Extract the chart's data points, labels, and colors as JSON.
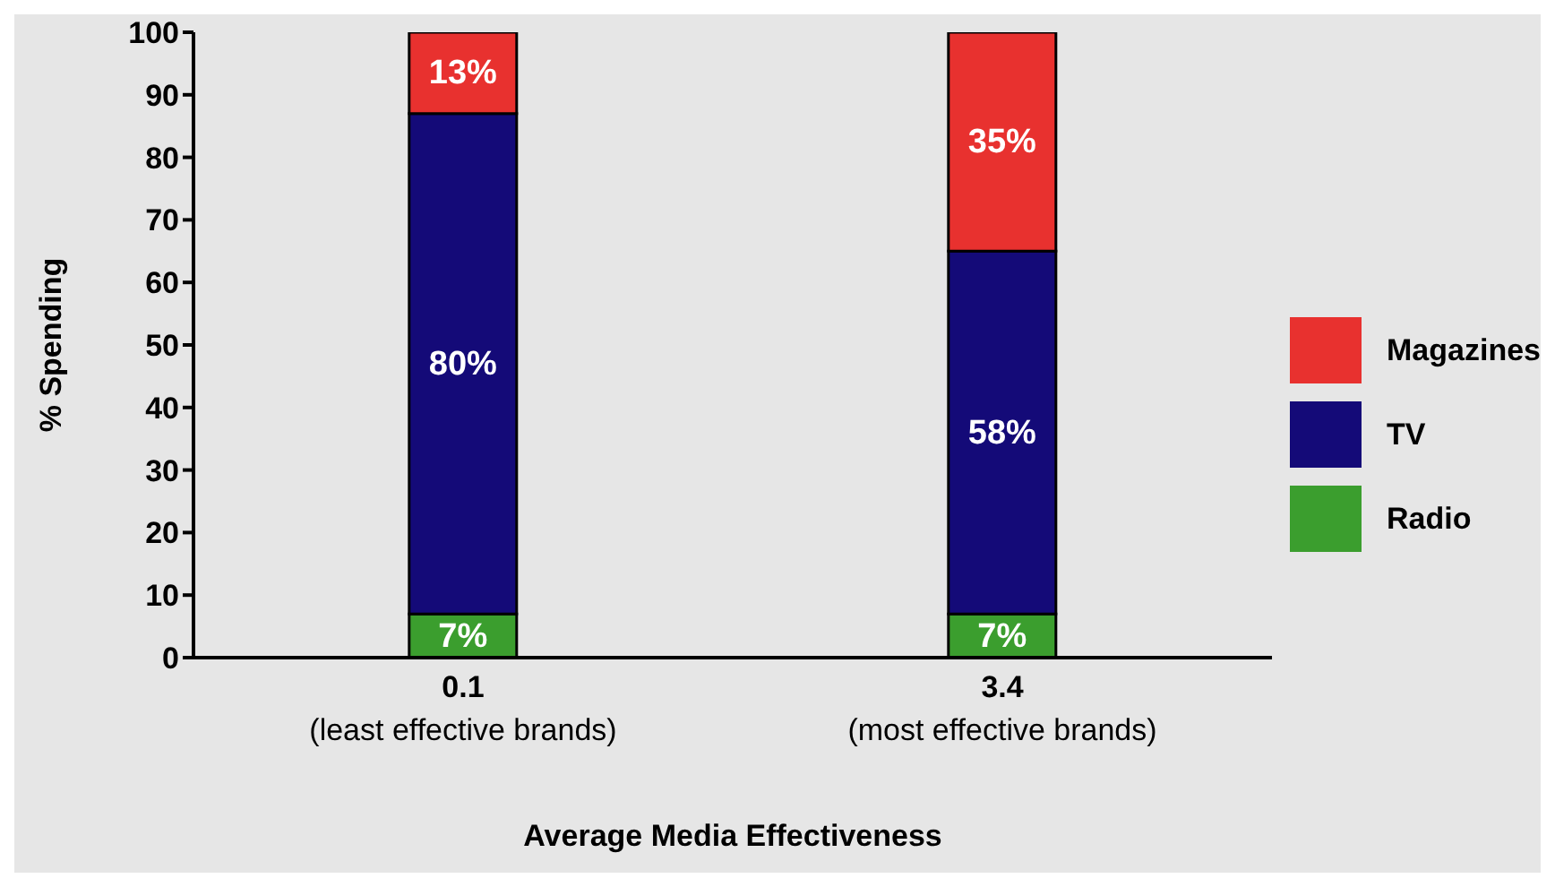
{
  "chart_data": {
    "type": "bar",
    "stacked": true,
    "xlabel": "Average Media Effectiveness",
    "ylabel": "% Spending",
    "categories": [
      "0.1\n(least effective brands)",
      "3.4\n(most effective brands)"
    ],
    "series": [
      {
        "name": "Radio",
        "color": "#3b9e2e",
        "values": [
          7,
          7
        ],
        "value_labels": [
          "7%",
          "7%"
        ]
      },
      {
        "name": "TV",
        "color": "#140a78",
        "values": [
          80,
          58
        ],
        "value_labels": [
          "80%",
          "58%"
        ]
      },
      {
        "name": "Magazines",
        "color": "#e8312f",
        "values": [
          13,
          35
        ],
        "value_labels": [
          "13%",
          "35%"
        ]
      }
    ],
    "ylim": [
      0,
      100
    ],
    "yticks": [
      0,
      10,
      20,
      30,
      40,
      50,
      60,
      70,
      80,
      90,
      100
    ],
    "grid": false,
    "legend": "right"
  }
}
